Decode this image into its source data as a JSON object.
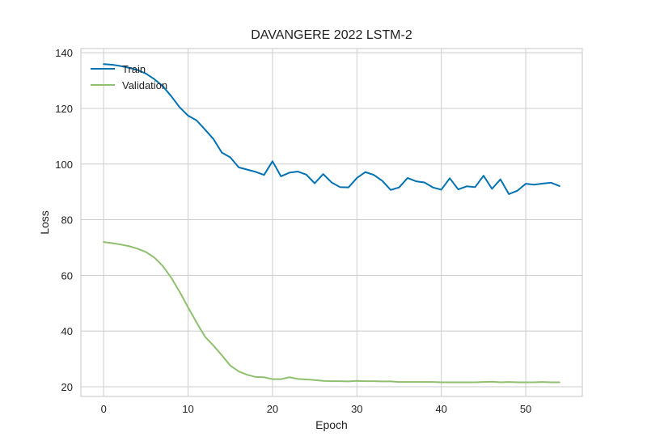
{
  "chart_data": {
    "type": "line",
    "title": "DAVANGERE 2022 LSTM-2",
    "xlabel": "Epoch",
    "ylabel": "Loss",
    "xlim": [
      -2.7,
      56.7
    ],
    "ylim": [
      16.5,
      141.5
    ],
    "xticks": [
      0,
      10,
      20,
      30,
      40,
      50
    ],
    "yticks": [
      20,
      40,
      60,
      80,
      100,
      120,
      140
    ],
    "grid": true,
    "legend_position": "top-left",
    "x": [
      0,
      1,
      2,
      3,
      4,
      5,
      6,
      7,
      8,
      9,
      10,
      11,
      12,
      13,
      14,
      15,
      16,
      17,
      18,
      19,
      20,
      21,
      22,
      23,
      24,
      25,
      26,
      27,
      28,
      29,
      30,
      31,
      32,
      33,
      34,
      35,
      36,
      37,
      38,
      39,
      40,
      41,
      42,
      43,
      44,
      45,
      46,
      47,
      48,
      49,
      50,
      51,
      52,
      53,
      54
    ],
    "series": [
      {
        "name": "Train",
        "color": "#0072b2",
        "values": [
          135.9,
          135.7,
          135.2,
          134.6,
          133.8,
          132.5,
          130.5,
          128.0,
          124.4,
          120.4,
          117.4,
          115.7,
          112.4,
          109.0,
          104.1,
          102.4,
          98.8,
          98.0,
          97.2,
          96.1,
          101.0,
          95.6,
          96.9,
          97.3,
          96.2,
          93.1,
          96.4,
          93.4,
          91.7,
          91.6,
          95.0,
          97.1,
          96.1,
          94.0,
          90.7,
          91.6,
          95.0,
          93.8,
          93.4,
          91.6,
          90.8,
          94.9,
          90.9,
          92.0,
          91.7,
          95.8,
          91.1,
          94.5,
          89.2,
          90.4,
          92.9,
          92.6,
          93.0,
          93.3,
          92.1
        ]
      },
      {
        "name": "Validation",
        "color": "#8fbf6f",
        "values": [
          72.0,
          71.6,
          71.1,
          70.5,
          69.6,
          68.4,
          66.4,
          63.4,
          59.2,
          54.1,
          48.5,
          43.1,
          38.0,
          34.8,
          31.3,
          27.6,
          25.5,
          24.3,
          23.5,
          23.4,
          22.7,
          22.7,
          23.4,
          22.8,
          22.6,
          22.4,
          22.1,
          22.0,
          22.0,
          21.9,
          22.1,
          22.0,
          22.0,
          21.9,
          21.9,
          21.7,
          21.7,
          21.7,
          21.7,
          21.7,
          21.6,
          21.6,
          21.6,
          21.6,
          21.6,
          21.7,
          21.8,
          21.6,
          21.7,
          21.6,
          21.6,
          21.6,
          21.7,
          21.6,
          21.6
        ]
      }
    ]
  }
}
